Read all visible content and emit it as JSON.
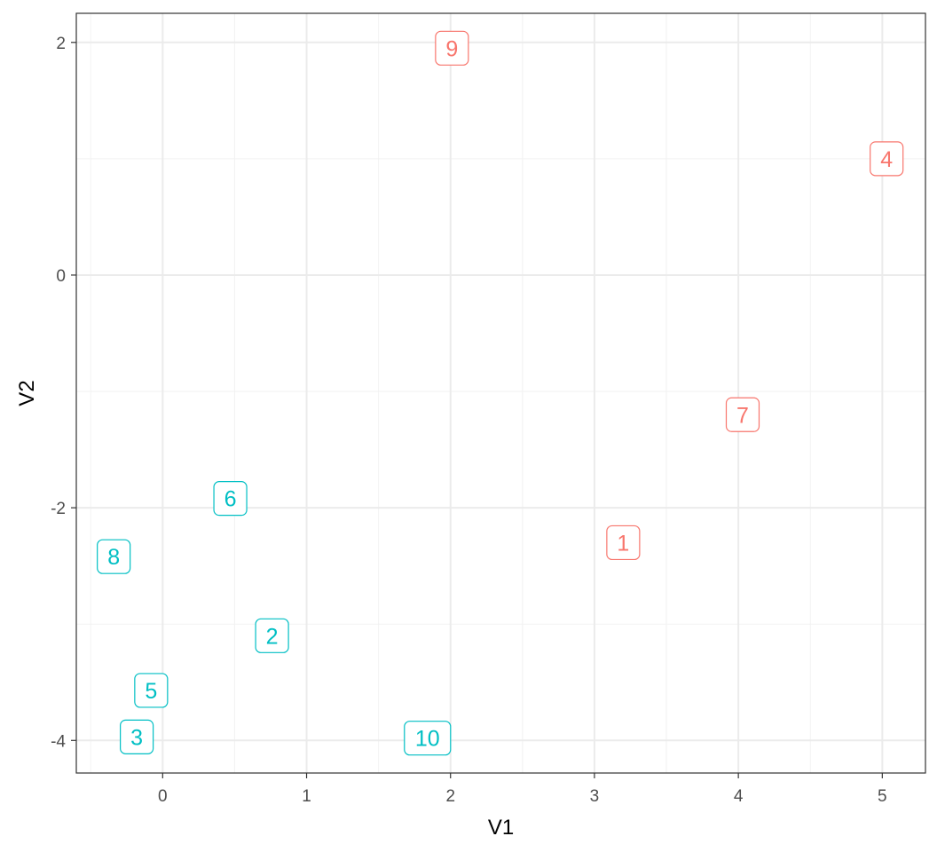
{
  "chart_data": {
    "type": "scatter",
    "xlabel": "V1",
    "ylabel": "V2",
    "xlim": [
      -0.6,
      5.3
    ],
    "ylim": [
      -4.28,
      2.25
    ],
    "x_ticks": [
      0,
      1,
      2,
      3,
      4,
      5
    ],
    "y_ticks": [
      -4,
      -2,
      0,
      2
    ],
    "x_tick_labels": [
      "0",
      "1",
      "2",
      "3",
      "4",
      "5"
    ],
    "y_tick_labels": [
      "-4",
      "-2",
      "0",
      "2"
    ],
    "grid": true,
    "legend": "none",
    "colors": {
      "group_a": "#F8766D",
      "group_b": "#00BFC4"
    },
    "points": [
      {
        "label": "1",
        "x": 3.2,
        "y": -2.3,
        "group": "group_a"
      },
      {
        "label": "2",
        "x": 0.76,
        "y": -3.1,
        "group": "group_b"
      },
      {
        "label": "3",
        "x": -0.18,
        "y": -3.97,
        "group": "group_b"
      },
      {
        "label": "4",
        "x": 5.03,
        "y": 1.0,
        "group": "group_a"
      },
      {
        "label": "5",
        "x": -0.08,
        "y": -3.57,
        "group": "group_b"
      },
      {
        "label": "6",
        "x": 0.47,
        "y": -1.92,
        "group": "group_b"
      },
      {
        "label": "7",
        "x": 4.03,
        "y": -1.2,
        "group": "group_a"
      },
      {
        "label": "8",
        "x": -0.34,
        "y": -2.42,
        "group": "group_b"
      },
      {
        "label": "9",
        "x": 2.01,
        "y": 1.95,
        "group": "group_a"
      },
      {
        "label": "10",
        "x": 1.84,
        "y": -3.98,
        "group": "group_b"
      }
    ]
  }
}
